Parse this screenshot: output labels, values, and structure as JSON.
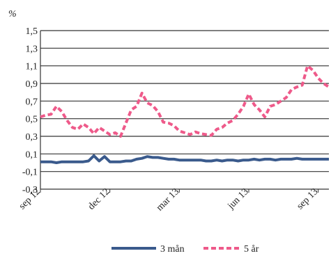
{
  "chart_data": {
    "type": "line",
    "ylabel": "%",
    "ylim": [
      -0.3,
      1.5
    ],
    "y_ticks": [
      "1,5",
      "1,3",
      "1,1",
      "0,9",
      "0,7",
      "0,5",
      "0,3",
      "0,1",
      "-0,1",
      "-0,3"
    ],
    "y_tick_values": [
      1.5,
      1.3,
      1.1,
      0.9,
      0.7,
      0.5,
      0.3,
      0.1,
      -0.1,
      -0.3
    ],
    "x_ticks": [
      "sep 12",
      "dec 12",
      "mar 13",
      "jun 13",
      "sep 13"
    ],
    "x_tick_index": [
      0,
      13,
      26,
      39,
      52
    ],
    "grid": "horizontal",
    "legend_position": "bottom",
    "colors": {
      "series_3m": "#3a5a8c",
      "series_5y": "#ee5a8a",
      "grid": "#333333"
    },
    "series": [
      {
        "name": "3 mån",
        "style": "solid",
        "values": [
          0.01,
          0.01,
          0.01,
          0.0,
          0.01,
          0.01,
          0.01,
          0.01,
          0.01,
          0.02,
          0.08,
          0.02,
          0.07,
          0.01,
          0.01,
          0.01,
          0.02,
          0.02,
          0.04,
          0.05,
          0.07,
          0.06,
          0.06,
          0.05,
          0.04,
          0.04,
          0.03,
          0.03,
          0.03,
          0.03,
          0.03,
          0.02,
          0.02,
          0.03,
          0.02,
          0.03,
          0.03,
          0.02,
          0.03,
          0.03,
          0.04,
          0.03,
          0.04,
          0.04,
          0.03,
          0.04,
          0.04,
          0.04,
          0.05,
          0.04,
          0.04,
          0.04,
          0.04,
          0.04,
          0.04
        ]
      },
      {
        "name": "5 år",
        "style": "dashed",
        "values": [
          0.52,
          0.54,
          0.55,
          0.64,
          0.58,
          0.48,
          0.4,
          0.38,
          0.44,
          0.4,
          0.33,
          0.4,
          0.36,
          0.32,
          0.34,
          0.3,
          0.45,
          0.6,
          0.64,
          0.79,
          0.68,
          0.65,
          0.58,
          0.46,
          0.45,
          0.42,
          0.36,
          0.34,
          0.32,
          0.35,
          0.33,
          0.32,
          0.31,
          0.38,
          0.4,
          0.45,
          0.48,
          0.55,
          0.64,
          0.78,
          0.66,
          0.6,
          0.52,
          0.64,
          0.66,
          0.7,
          0.74,
          0.83,
          0.86,
          0.88,
          1.1,
          1.05,
          0.96,
          0.9,
          0.86
        ]
      }
    ]
  }
}
